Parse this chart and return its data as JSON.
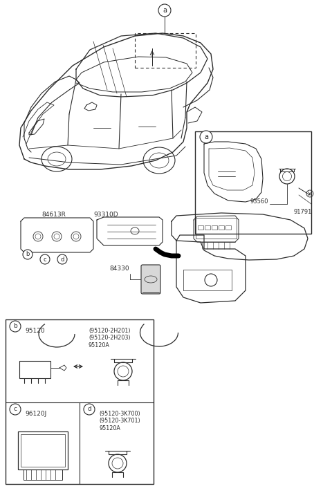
{
  "bg_color": "#ffffff",
  "line_color": "#2a2a2a",
  "fig_width": 4.8,
  "fig_height": 7.13,
  "dpi": 100,
  "labels": {
    "callout_a_top": "a",
    "callout_a_inset": "a",
    "part_84613R": "84613R",
    "part_93310D": "93310D",
    "part_84330": "84330",
    "part_93560": "93560",
    "part_91791": "91791",
    "part_95120": "95120",
    "part_96120J": "96120J",
    "b_parts": "(95120-2H201)\n(95120-2H203)\n95120A",
    "d_parts": "(95120-3K700)\n(95120-3K701)\n95120A"
  }
}
